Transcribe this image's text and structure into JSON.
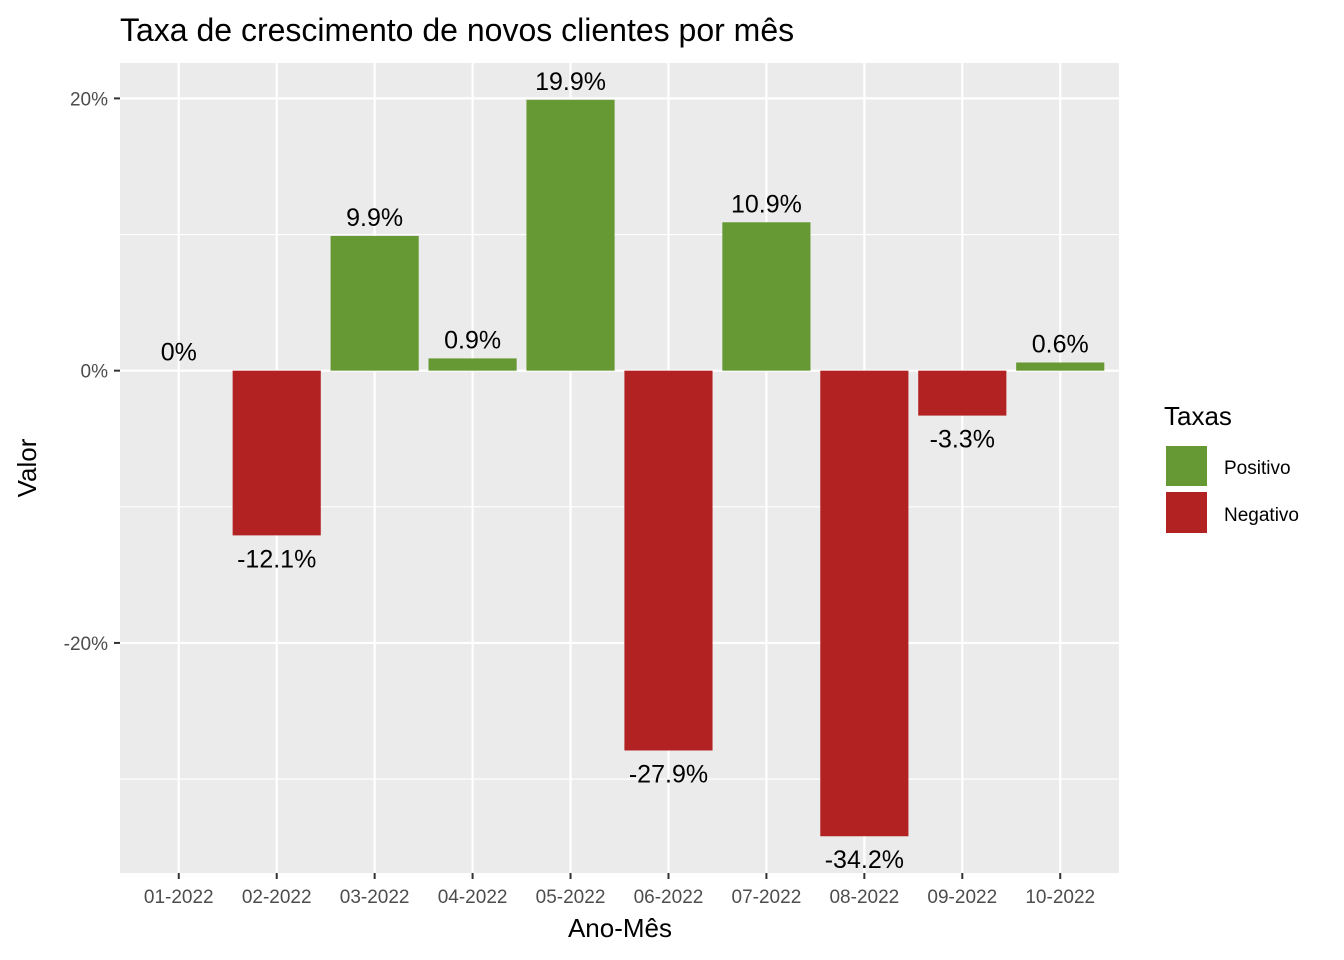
{
  "chart_data": {
    "type": "bar",
    "title": "Taxa de crescimento de novos clientes por mês",
    "xlabel": "Ano-Mês",
    "ylabel": "Valor",
    "categories": [
      "01-2022",
      "02-2022",
      "03-2022",
      "04-2022",
      "05-2022",
      "06-2022",
      "07-2022",
      "08-2022",
      "09-2022",
      "10-2022"
    ],
    "values": [
      0,
      -12.1,
      9.9,
      0.9,
      19.9,
      -27.9,
      10.9,
      -34.2,
      -3.3,
      0.6
    ],
    "labels": [
      "0%",
      "-12.1%",
      "9.9%",
      "0.9%",
      "19.9%",
      "-27.9%",
      "10.9%",
      "-34.2%",
      "-3.3%",
      "0.6%"
    ],
    "ylim": [
      -36.9,
      22.6
    ],
    "yticks": [
      20,
      0,
      -20
    ],
    "ytick_labels": [
      "20%",
      "0%",
      "-20%"
    ],
    "grid": true,
    "legend": {
      "title": "Taxas",
      "placement": "right",
      "entries": [
        {
          "name": "Positivo",
          "color": "#669933"
        },
        {
          "name": "Negativo",
          "color": "#b22222"
        }
      ]
    },
    "colors": {
      "positive": "#669933",
      "negative": "#b22222",
      "panel": "#ebebeb",
      "grid": "#ffffff"
    }
  }
}
